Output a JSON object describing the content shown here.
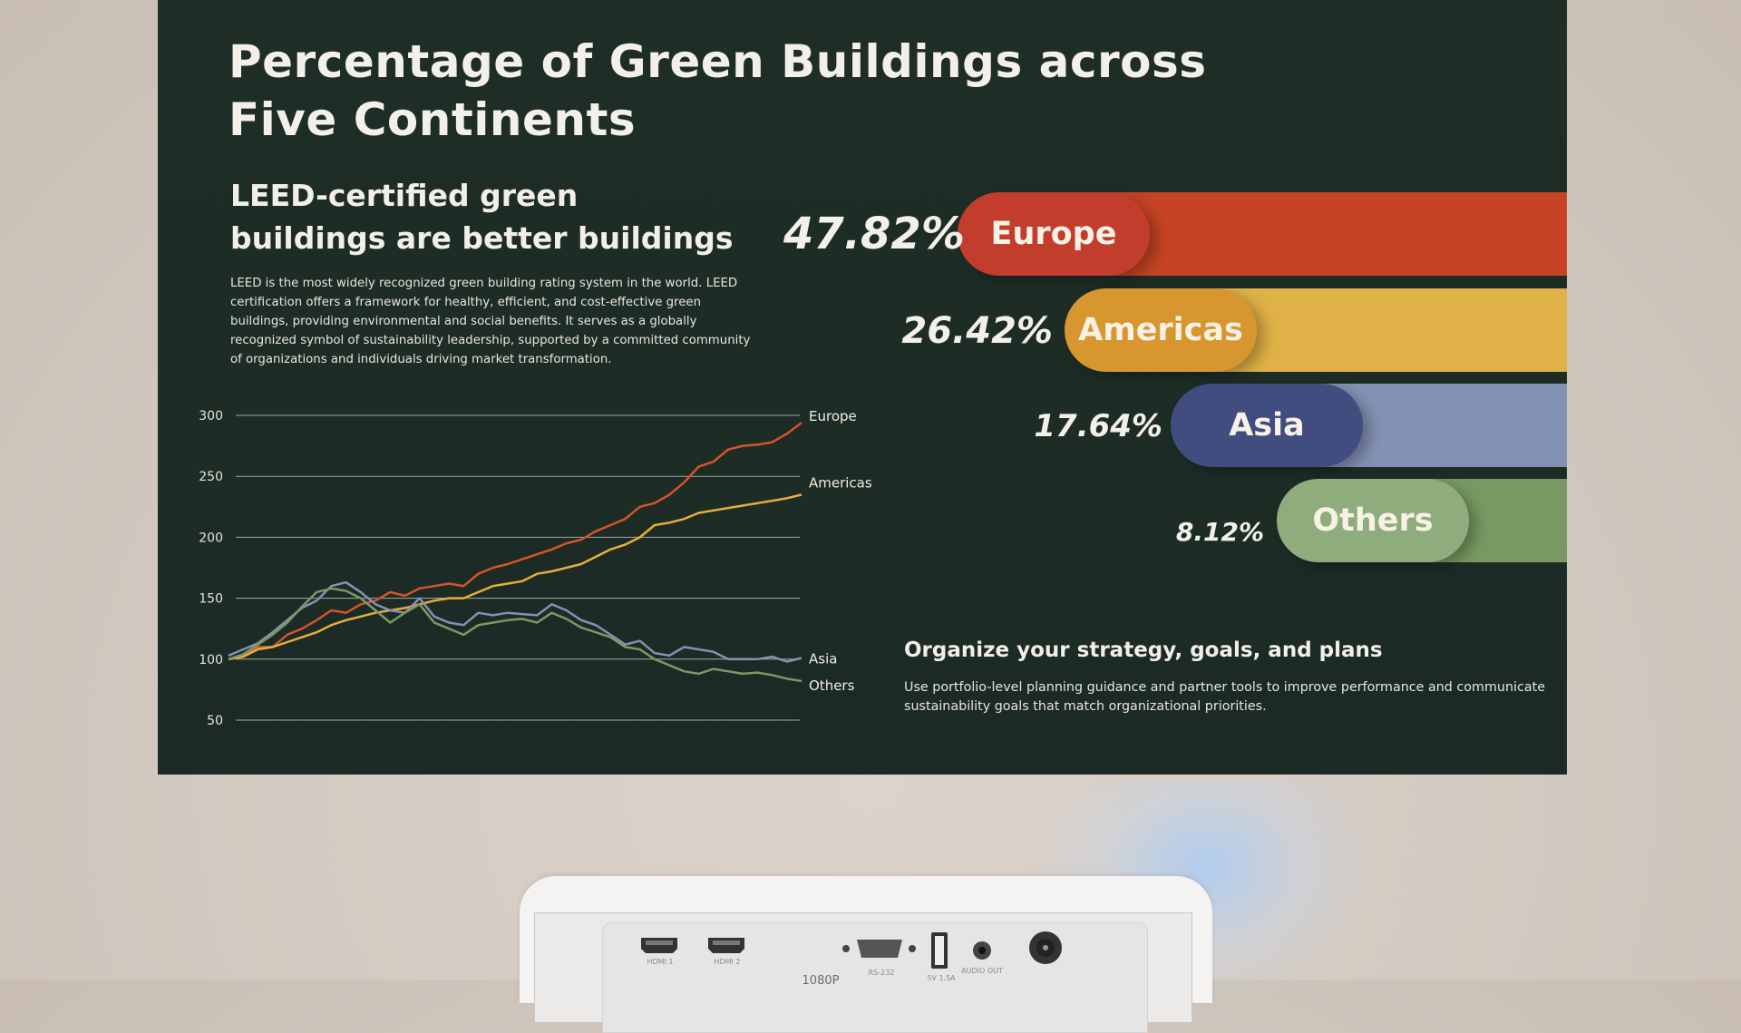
{
  "slide": {
    "title": "Percentage of Green Buildings across Five Continents",
    "subtitle": "LEED-certified green buildings are better buildings",
    "description": "LEED is the most widely recognized green building rating system in the world. LEED certification offers a framework for healthy, efficient, and cost-effective green buildings, providing environmental and social benefits. It serves as a globally recognized symbol of sustainability leadership, supported by a committed community of organizations and individuals driving market transformation.",
    "organize_title": "Organize your strategy, goals, and plans",
    "organize_text": "Use portfolio-level planning guidance and partner tools to improve performance and communicate sustainability goals that match organizational priorities."
  },
  "bars": [
    {
      "label": "Europe",
      "percent_label": "47.82%",
      "value": 47.82,
      "color": "#c64424",
      "pill_color": "#c23d2c"
    },
    {
      "label": "Americas",
      "percent_label": "26.42%",
      "value": 26.42,
      "color": "#dfb146",
      "pill_color": "#d8962e"
    },
    {
      "label": "Asia",
      "percent_label": "17.64%",
      "value": 17.64,
      "color": "#8391b3",
      "pill_color": "#414d7f"
    },
    {
      "label": "Others",
      "percent_label": "8.12%",
      "value": 8.12,
      "color": "#789a62",
      "pill_color": "#8fac7c"
    }
  ],
  "chart_data": {
    "type": "line",
    "yticks": [
      "300",
      "250",
      "200",
      "150",
      "100",
      "50"
    ],
    "ylim": [
      50,
      300
    ],
    "grid": true,
    "series": [
      {
        "name": "Europe",
        "color": "#d4552a",
        "values": [
          100,
          103,
          110,
          110,
          120,
          125,
          132,
          140,
          138,
          145,
          148,
          155,
          152,
          158,
          160,
          162,
          160,
          170,
          175,
          178,
          182,
          186,
          190,
          195,
          198,
          205,
          210,
          215,
          225,
          228,
          235,
          245,
          258,
          262,
          272,
          275,
          276,
          278,
          285,
          294
        ]
      },
      {
        "name": "Americas",
        "color": "#e6ae3b",
        "values": [
          100,
          102,
          108,
          110,
          114,
          118,
          122,
          128,
          132,
          135,
          138,
          140,
          142,
          145,
          148,
          150,
          150,
          155,
          160,
          162,
          164,
          170,
          172,
          175,
          178,
          184,
          190,
          194,
          200,
          210,
          212,
          215,
          220,
          222,
          224,
          226,
          228,
          230,
          232,
          235
        ]
      },
      {
        "name": "Asia",
        "color": "#8590b4",
        "values": [
          103,
          108,
          113,
          122,
          132,
          142,
          148,
          160,
          163,
          155,
          145,
          140,
          138,
          150,
          135,
          130,
          128,
          138,
          136,
          138,
          137,
          136,
          145,
          140,
          132,
          128,
          120,
          112,
          115,
          105,
          103,
          110,
          108,
          106,
          100,
          100,
          100,
          102,
          98,
          101
        ]
      },
      {
        "name": "Others",
        "color": "#7a9a62",
        "values": [
          100,
          104,
          112,
          120,
          130,
          143,
          155,
          158,
          156,
          150,
          140,
          130,
          138,
          145,
          130,
          125,
          120,
          128,
          130,
          132,
          133,
          130,
          138,
          133,
          126,
          122,
          118,
          110,
          108,
          100,
          95,
          90,
          88,
          92,
          90,
          88,
          89,
          87,
          84,
          82
        ]
      }
    ]
  },
  "device": {
    "ports": [
      "HDMI 1",
      "HDMI 2",
      "RS-232",
      "5V 1.5A",
      "AUDIO OUT"
    ],
    "badge": "1080P"
  }
}
